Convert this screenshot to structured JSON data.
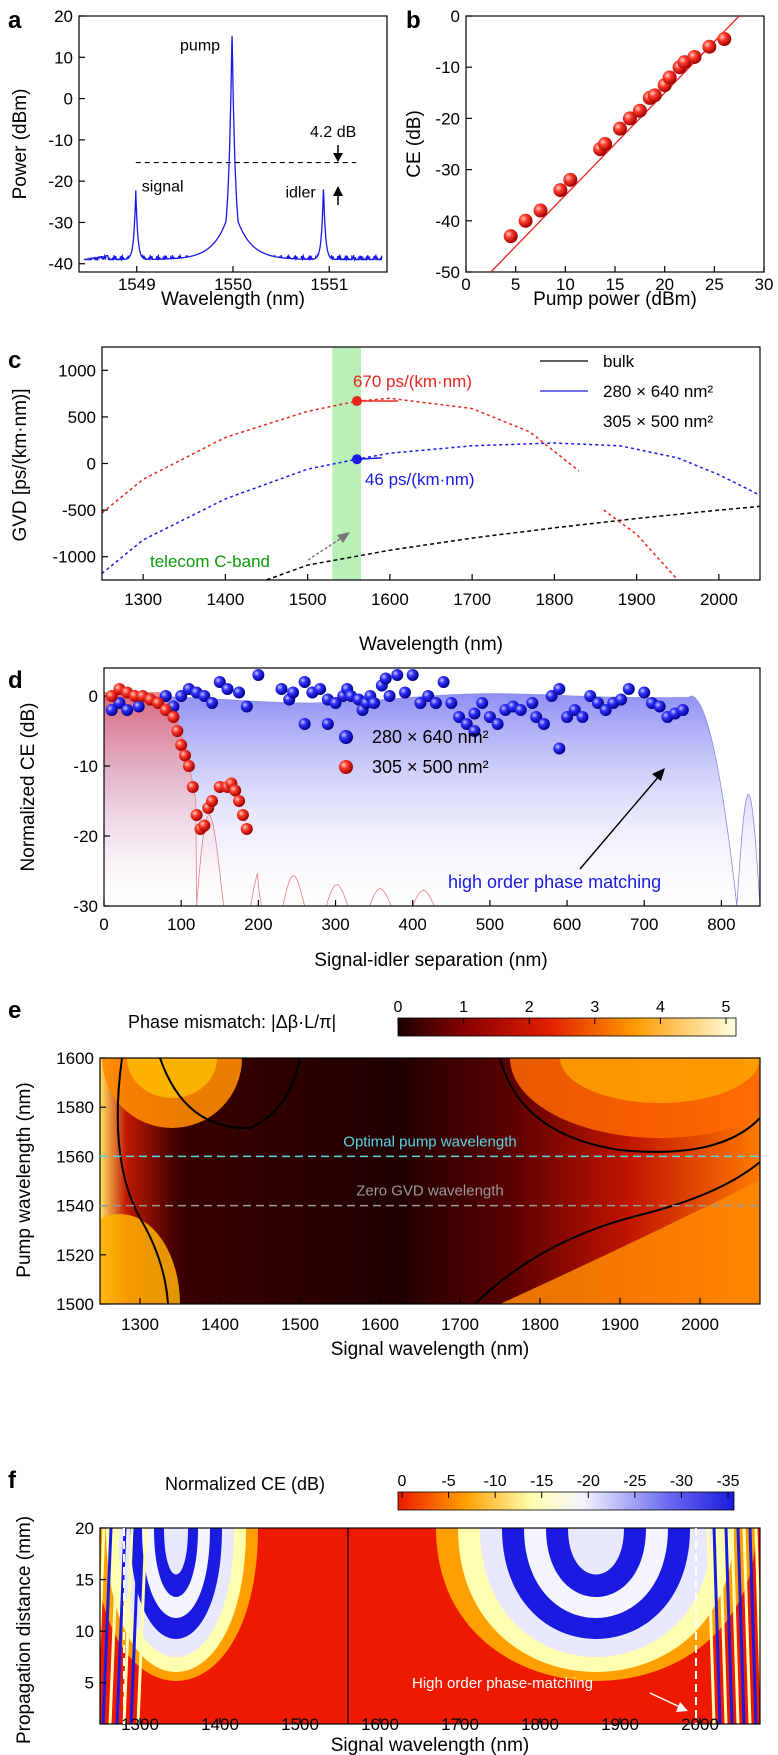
{
  "panels": {
    "a": "a",
    "b": "b",
    "c": "c",
    "d": "d",
    "e": "e",
    "f": "f"
  },
  "colors": {
    "red": "#e8261e",
    "blue": "#1a1ae6",
    "green": "#0a9a0a",
    "cband": "#b8f0b8",
    "cyan": "#5ad6e6",
    "grey": "#9a9a9a"
  },
  "chart_data": [
    {
      "id": "a",
      "type": "line",
      "xlabel": "Wavelength (nm)",
      "ylabel": "Power (dBm)",
      "xlim": [
        1548.4,
        1551.6
      ],
      "ylim": [
        -42,
        20
      ],
      "x_ticks": [
        1549,
        1550,
        1551
      ],
      "y_ticks": [
        20,
        10,
        0,
        -10,
        -20,
        -30,
        -40
      ],
      "peaks": [
        {
          "name": "signal",
          "x": 1548.99,
          "y": -22
        },
        {
          "name": "pump",
          "x": 1549.99,
          "y": 17
        },
        {
          "name": "idler",
          "x": 1550.94,
          "y": -21
        }
      ],
      "floor": -39,
      "dashed_level": -15.5,
      "annotation": "4.2 dB"
    },
    {
      "id": "b",
      "type": "scatter",
      "xlabel": "Pump power (dBm)",
      "ylabel": "CE (dB)",
      "xlim": [
        0,
        30
      ],
      "ylim": [
        -50,
        0
      ],
      "x_ticks": [
        0,
        5,
        10,
        15,
        20,
        25,
        30
      ],
      "y_ticks": [
        0,
        -10,
        -20,
        -30,
        -40,
        -50
      ],
      "points": [
        [
          4.5,
          -43
        ],
        [
          6,
          -40
        ],
        [
          7.5,
          -38
        ],
        [
          9.5,
          -34
        ],
        [
          10.5,
          -32
        ],
        [
          13.5,
          -26
        ],
        [
          14,
          -25
        ],
        [
          15.5,
          -22
        ],
        [
          16.5,
          -20
        ],
        [
          17.5,
          -18.5
        ],
        [
          18.5,
          -16
        ],
        [
          19,
          -15.5
        ],
        [
          20,
          -13.5
        ],
        [
          20.5,
          -12
        ],
        [
          21.5,
          -10
        ],
        [
          22,
          -9
        ],
        [
          23,
          -8
        ],
        [
          24.5,
          -6
        ],
        [
          26,
          -4.5
        ]
      ],
      "fit_line": [
        [
          2.5,
          -50
        ],
        [
          27.5,
          0
        ]
      ]
    },
    {
      "id": "c",
      "type": "line",
      "xlabel": "Wavelength (nm)",
      "ylabel": "GVD [ps/(km·nm)]",
      "xlim": [
        1250,
        2050
      ],
      "ylim": [
        -1250,
        1250
      ],
      "x_ticks": [
        1300,
        1400,
        1500,
        1600,
        1700,
        1800,
        1900,
        2000
      ],
      "y_ticks": [
        1000,
        500,
        0,
        -500,
        -1000
      ],
      "cband": [
        1530,
        1565
      ],
      "legend": [
        "bulk",
        "280 × 640 nm²",
        "305 × 500 nm²"
      ],
      "series": [
        {
          "name": "bulk",
          "color": "#000000",
          "points": [
            [
              1450,
              -1250
            ],
            [
              1500,
              -1090
            ],
            [
              1600,
              -930
            ],
            [
              1700,
              -800
            ],
            [
              1800,
              -690
            ],
            [
              1900,
              -590
            ],
            [
              2000,
              -500
            ],
            [
              2050,
              -460
            ]
          ]
        },
        {
          "name": "280 × 640 nm²",
          "color": "#1a1ae6",
          "points": [
            [
              1250,
              -1180
            ],
            [
              1300,
              -820
            ],
            [
              1400,
              -380
            ],
            [
              1500,
              -60
            ],
            [
              1560,
              46
            ],
            [
              1600,
              110
            ],
            [
              1700,
              190
            ],
            [
              1800,
              220
            ],
            [
              1880,
              190
            ],
            [
              1950,
              60
            ],
            [
              2000,
              -120
            ],
            [
              2050,
              -340
            ]
          ]
        },
        {
          "name": "305 × 500 nm²",
          "color": "#e8261e",
          "points": [
            [
              1250,
              -530
            ],
            [
              1300,
              -170
            ],
            [
              1400,
              280
            ],
            [
              1500,
              560
            ],
            [
              1560,
              670
            ],
            [
              1600,
              700
            ],
            [
              1700,
              590
            ],
            [
              1770,
              340
            ],
            [
              1830,
              -80
            ]
          ]
        },
        {
          "name": "",
          "color": "#e8261e",
          "points": [
            [
              1860,
              -500
            ],
            [
              1900,
              -760
            ],
            [
              1950,
              -1250
            ]
          ]
        }
      ],
      "markers": [
        {
          "x": 1560,
          "y": 670,
          "color": "#e8261e",
          "label": "670 ps/(km·nm)"
        },
        {
          "x": 1560,
          "y": 46,
          "color": "#1a1ae6",
          "label": "46 ps/(km·nm)"
        }
      ],
      "annotation": "telecom C-band"
    },
    {
      "id": "d",
      "type": "scatter",
      "xlabel": "Signal-idler separation (nm)",
      "ylabel": "Normalized CE (dB)",
      "xlim": [
        0,
        850
      ],
      "ylim": [
        -30,
        4
      ],
      "x_ticks": [
        0,
        100,
        200,
        300,
        400,
        500,
        600,
        700,
        800
      ],
      "y_ticks": [
        0,
        -10,
        -20,
        -30
      ],
      "series": [
        {
          "name": "280 × 640 nm²",
          "color": "#1a1ae6",
          "points": [
            [
              10,
              -2
            ],
            [
              20,
              -1
            ],
            [
              30,
              -2
            ],
            [
              45,
              -1.5
            ],
            [
              60,
              -0.5
            ],
            [
              80,
              0
            ],
            [
              90,
              -1.5
            ],
            [
              100,
              0
            ],
            [
              110,
              1
            ],
            [
              120,
              0.5
            ],
            [
              130,
              0
            ],
            [
              140,
              -1
            ],
            [
              150,
              2
            ],
            [
              160,
              1
            ],
            [
              175,
              0.5
            ],
            [
              185,
              -1.5
            ],
            [
              200,
              3
            ],
            [
              230,
              1
            ],
            [
              240,
              -0.5
            ],
            [
              245,
              0.5
            ],
            [
              260,
              2
            ],
            [
              270,
              0.5
            ],
            [
              280,
              1
            ],
            [
              290,
              -0.5
            ],
            [
              300,
              -1
            ],
            [
              310,
              0
            ],
            [
              315,
              1
            ],
            [
              320,
              0
            ],
            [
              330,
              -0.5
            ],
            [
              335,
              -2
            ],
            [
              340,
              -1
            ],
            [
              345,
              0
            ],
            [
              350,
              -1
            ],
            [
              360,
              1.5
            ],
            [
              365,
              2.5
            ],
            [
              370,
              0
            ],
            [
              380,
              3
            ],
            [
              390,
              0.5
            ],
            [
              400,
              3
            ],
            [
              410,
              -1
            ],
            [
              420,
              0
            ],
            [
              430,
              -1
            ],
            [
              440,
              2
            ],
            [
              450,
              -1
            ],
            [
              460,
              -3
            ],
            [
              470,
              -4
            ],
            [
              480,
              -2.5
            ],
            [
              490,
              -1
            ],
            [
              500,
              -3
            ],
            [
              510,
              -4
            ],
            [
              520,
              -2
            ],
            [
              530,
              -1.5
            ],
            [
              540,
              -2
            ],
            [
              555,
              -1
            ],
            [
              560,
              -3
            ],
            [
              570,
              -4
            ],
            [
              580,
              0
            ],
            [
              590,
              1
            ],
            [
              600,
              -3
            ],
            [
              610,
              -2
            ],
            [
              620,
              -3
            ],
            [
              630,
              0
            ],
            [
              640,
              -1
            ],
            [
              650,
              -2
            ],
            [
              660,
              -1
            ],
            [
              670,
              -0.5
            ],
            [
              680,
              1
            ],
            [
              700,
              0.5
            ],
            [
              710,
              -1
            ],
            [
              720,
              -1.5
            ],
            [
              730,
              -3
            ],
            [
              740,
              -2.5
            ],
            [
              750,
              -2
            ],
            [
              290,
              -4
            ],
            [
              590,
              -7.5
            ],
            [
              480,
              -5
            ],
            [
              260,
              -4
            ]
          ]
        },
        {
          "name": "305 × 500 nm²",
          "color": "#e8261e",
          "points": [
            [
              10,
              0
            ],
            [
              20,
              1
            ],
            [
              30,
              0.5
            ],
            [
              40,
              0
            ],
            [
              50,
              0
            ],
            [
              60,
              -0.5
            ],
            [
              70,
              -1
            ],
            [
              80,
              -2
            ],
            [
              90,
              -3
            ],
            [
              95,
              -5
            ],
            [
              100,
              -7
            ],
            [
              105,
              -8.5
            ],
            [
              110,
              -10
            ],
            [
              115,
              -13
            ],
            [
              120,
              -17
            ],
            [
              125,
              -19
            ],
            [
              130,
              -18.5
            ],
            [
              135,
              -16
            ],
            [
              140,
              -15
            ],
            [
              150,
              -13
            ],
            [
              160,
              -13
            ],
            [
              165,
              -12.5
            ],
            [
              170,
              -13.5
            ],
            [
              175,
              -15
            ],
            [
              180,
              -17
            ],
            [
              185,
              -19
            ]
          ]
        }
      ],
      "annotation": "high order phase matching"
    },
    {
      "id": "e",
      "type": "heatmap",
      "title": "Phase mismatch: |Δβ·L/π|",
      "xlabel": "Signal wavelength (nm)",
      "ylabel": "Pump wavelength (nm)",
      "xlim": [
        1250,
        2075
      ],
      "ylim": [
        1500,
        1600
      ],
      "x_ticks": [
        1300,
        1400,
        1500,
        1600,
        1700,
        1800,
        1900,
        2000
      ],
      "y_ticks": [
        1600,
        1580,
        1560,
        1540,
        1520,
        1500
      ],
      "colorbar_ticks": [
        0,
        1,
        2,
        3,
        4,
        5
      ],
      "reference_lines": [
        {
          "y": 1560,
          "label": "Optimal pump wavelength"
        },
        {
          "y": 1540,
          "label": "Zero GVD wavelength"
        }
      ]
    },
    {
      "id": "f",
      "type": "heatmap",
      "title": "Normalized CE (dB)",
      "xlabel": "Signal wavelength (nm)",
      "ylabel": "Propagation distance (mm)",
      "xlim": [
        1250,
        2075
      ],
      "ylim": [
        1,
        20
      ],
      "x_ticks": [
        1300,
        1400,
        1500,
        1600,
        1700,
        1800,
        1900,
        2000
      ],
      "y_ticks": [
        20,
        15,
        10,
        5
      ],
      "colorbar_ticks": [
        0,
        -5,
        -10,
        -15,
        -20,
        -25,
        -30,
        -35
      ],
      "pump_line": 1560,
      "dashed_lines": [
        1280,
        1995
      ],
      "annotation": "High order phase-matching"
    }
  ]
}
